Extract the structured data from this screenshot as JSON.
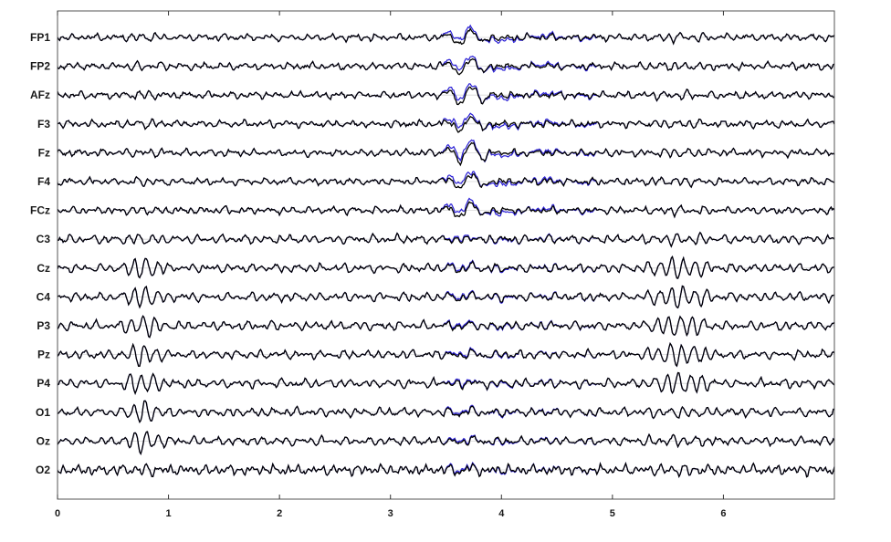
{
  "chart_data": {
    "type": "line",
    "channels": [
      "FP1",
      "FP2",
      "AFz",
      "F3",
      "Fz",
      "F4",
      "FCz",
      "C3",
      "Cz",
      "C4",
      "P3",
      "Pz",
      "P4",
      "O1",
      "Oz",
      "O2"
    ],
    "xlim": [
      0,
      7
    ],
    "xticks": [
      "0",
      "1",
      "2",
      "3",
      "4",
      "5",
      "6"
    ],
    "grid": true,
    "series_colors": {
      "trace_a": "#000000",
      "trace_b": "#2a1fd6"
    },
    "annotations": [],
    "features": [
      {
        "kind": "frontal-transient",
        "t_start": 3.45,
        "t_end": 3.95,
        "strongest_on": [
          "FP1",
          "FP2",
          "AFz",
          "F3",
          "Fz",
          "F4",
          "FCz"
        ]
      },
      {
        "kind": "posterior-burst",
        "t_start": 5.25,
        "t_end": 5.95,
        "strongest_on": [
          "Cz",
          "C4",
          "P3",
          "Pz",
          "P4"
        ]
      },
      {
        "kind": "posterior-burst",
        "t_start": 0.55,
        "t_end": 1.0,
        "strongest_on": [
          "Cz",
          "C4",
          "P3",
          "Pz",
          "P4",
          "O1",
          "Oz"
        ]
      }
    ]
  }
}
